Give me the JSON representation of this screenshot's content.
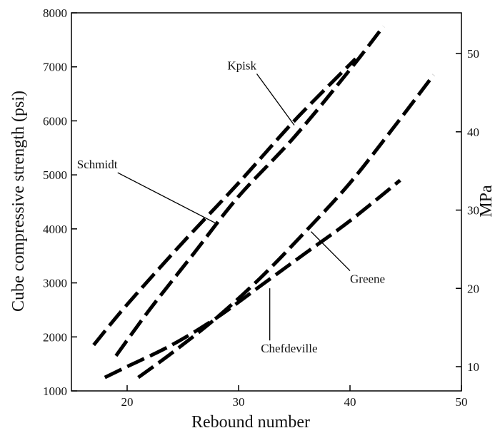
{
  "chart_data": {
    "type": "line",
    "xlabel": "Rebound number",
    "ylabel": "Cube compressive strength (psi)",
    "y2label": "MPa",
    "xlim": [
      15,
      50
    ],
    "ylim": [
      1000,
      8000
    ],
    "y2lim": [
      6.9,
      55.2
    ],
    "x_ticks": [
      20,
      30,
      40,
      50
    ],
    "y_ticks": [
      1000,
      2000,
      3000,
      4000,
      5000,
      6000,
      7000,
      8000
    ],
    "y2_ticks": [
      10,
      20,
      30,
      40,
      50
    ],
    "grid": false,
    "legend": "inline labels",
    "series": [
      {
        "name": "Kpisk",
        "x": [
          17,
          20,
          25,
          30,
          35,
          40.5
        ],
        "y": [
          1850,
          2600,
          3750,
          4850,
          6000,
          7150
        ],
        "label_at": [
          29,
          6950
        ],
        "pointer_to": [
          35,
          5920
        ]
      },
      {
        "name": "Schmidt",
        "x": [
          19,
          22,
          26,
          30,
          35,
          40,
          43
        ],
        "y": [
          1650,
          2500,
          3550,
          4600,
          5700,
          6950,
          7750
        ],
        "label_at": [
          15.5,
          5120
        ],
        "pointer_to": [
          28,
          4100
        ]
      },
      {
        "name": "Greene",
        "x": [
          21,
          24,
          28,
          32,
          36,
          40,
          44,
          47.5
        ],
        "y": [
          1250,
          1700,
          2350,
          3100,
          3950,
          4850,
          5900,
          6850
        ],
        "label_at": [
          40,
          3000
        ],
        "pointer_to": [
          36.5,
          3950
        ]
      },
      {
        "name": "Chefdeville",
        "x": [
          18,
          20,
          24,
          28,
          32,
          36,
          40,
          44.5
        ],
        "y": [
          1250,
          1450,
          1850,
          2350,
          2950,
          3550,
          4150,
          4900
        ],
        "label_at": [
          32,
          1710
        ],
        "pointer_to": [
          32.8,
          2900
        ]
      }
    ]
  }
}
